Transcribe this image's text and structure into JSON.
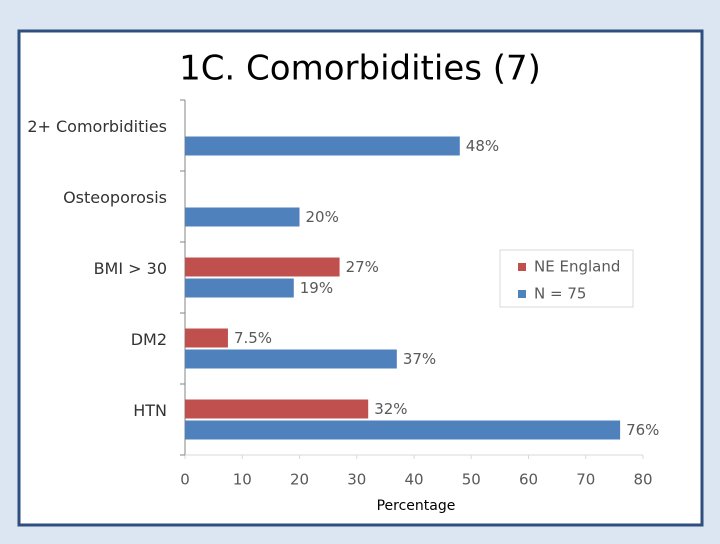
{
  "chart_data": {
    "type": "bar",
    "orientation": "horizontal",
    "title": "1C.  Comorbidities (7)",
    "x_label": "Percentage",
    "categories": [
      "2+ Comorbidities",
      "Osteoporosis",
      "BMI > 30",
      "DM2",
      "HTN"
    ],
    "series": [
      {
        "name": "NE England",
        "color": "#c0504d",
        "values": [
          null,
          null,
          27,
          7.5,
          32
        ],
        "value_labels": [
          null,
          null,
          "27%",
          "7.5%",
          "32%"
        ]
      },
      {
        "name": "N = 75",
        "color": "#4f81bd",
        "values": [
          48,
          20,
          19,
          37,
          76
        ],
        "value_labels": [
          "48%",
          "20%",
          "19%",
          "37%",
          "76%"
        ]
      }
    ],
    "xlim": [
      0,
      80
    ],
    "xticks": [
      0,
      10,
      20,
      30,
      40,
      50,
      60,
      70,
      80
    ],
    "grid": false,
    "legend": "right"
  }
}
